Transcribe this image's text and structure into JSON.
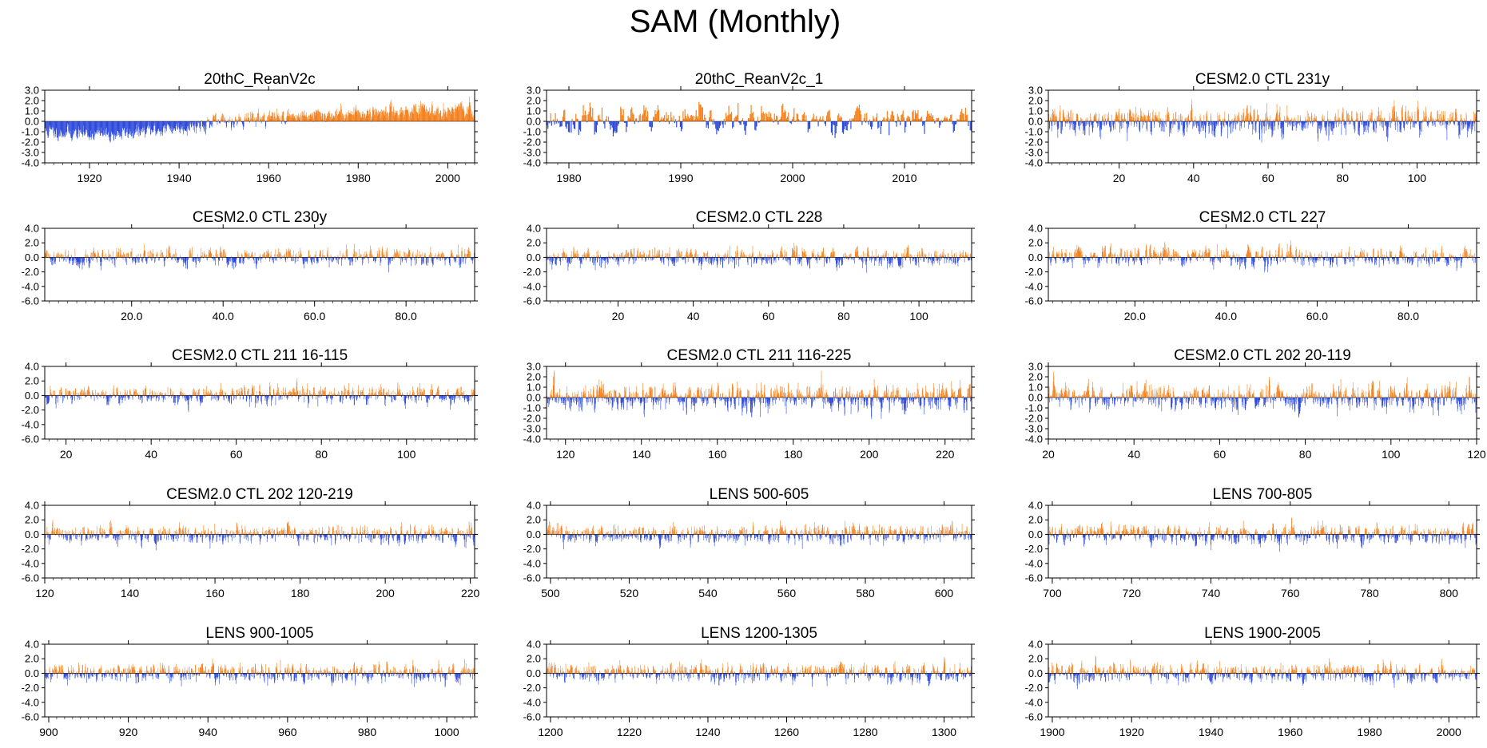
{
  "figure_title": "SAM (Monthly)",
  "colors": {
    "positive": "#f5811f",
    "negative": "#2f4bdc",
    "axis": "#000000"
  },
  "chart_data": [
    {
      "type": "bar",
      "title": "20thC_ReanV2c",
      "xlim": [
        1910,
        2006
      ],
      "ylim": [
        -4,
        3
      ],
      "yticks": [
        3,
        2,
        1,
        0,
        -1,
        -2,
        -3,
        -4
      ],
      "ytick_labels": [
        "3.0",
        "2.0",
        "1.0",
        "0.0",
        "-1.0",
        "-2.0",
        "-3.0",
        "-4.0"
      ],
      "xticks": [
        1920,
        1940,
        1960,
        1980,
        2000
      ],
      "xtick_labels": [
        "1920",
        "1940",
        "1960",
        "1980",
        "2000"
      ],
      "trend": [
        [
          1910,
          -1.0
        ],
        [
          1925,
          -1.3
        ],
        [
          1934,
          -0.9
        ],
        [
          1945,
          -0.3
        ],
        [
          1955,
          0.3
        ],
        [
          1970,
          0.6
        ],
        [
          1980,
          0.8
        ],
        [
          1990,
          1.0
        ],
        [
          2000,
          1.1
        ],
        [
          2006,
          1.0
        ]
      ],
      "noise": 0.5,
      "seed": 11,
      "months": 1152
    },
    {
      "type": "bar",
      "title": "20thC_ReanV2c_1",
      "xlim": [
        1978,
        2016
      ],
      "ylim": [
        -4,
        3
      ],
      "yticks": [
        3,
        2,
        1,
        0,
        -1,
        -2,
        -3,
        -4
      ],
      "ytick_labels": [
        "3.0",
        "2.0",
        "1.0",
        "0.0",
        "-1.0",
        "-2.0",
        "-3.0",
        "-4.0"
      ],
      "xticks": [
        1980,
        1990,
        2000,
        2010
      ],
      "xtick_labels": [
        "1980",
        "1990",
        "2000",
        "2010"
      ],
      "trend": [
        [
          1978,
          0.2
        ],
        [
          1985,
          0.0
        ],
        [
          1995,
          0.1
        ],
        [
          2005,
          0.2
        ],
        [
          2016,
          0.2
        ]
      ],
      "noise": 0.9,
      "seed": 23,
      "months": 456
    },
    {
      "type": "bar",
      "title": "CESM2.0 CTL 231y",
      "xlim": [
        1,
        116
      ],
      "ylim": [
        -4,
        3
      ],
      "yticks": [
        3,
        2,
        1,
        0,
        -1,
        -2,
        -3,
        -4
      ],
      "ytick_labels": [
        "3.0",
        "2.0",
        "1.0",
        "0.0",
        "-1.0",
        "-2.0",
        "-3.0",
        "-4.0"
      ],
      "xticks": [
        20,
        40,
        60,
        80,
        100
      ],
      "xtick_labels": [
        "20",
        "40",
        "60",
        "80",
        "100"
      ],
      "trend": [
        [
          1,
          0.0
        ],
        [
          116,
          0.0
        ]
      ],
      "noise": 0.9,
      "seed": 37,
      "months": 1380
    },
    {
      "type": "bar",
      "title": "CESM2.0 CTL 230y",
      "xlim": [
        1,
        95
      ],
      "ylim": [
        -6,
        4
      ],
      "yticks": [
        4,
        2,
        0,
        -2,
        -4,
        -6
      ],
      "ytick_labels": [
        "4.0",
        "2.0",
        "0.0",
        "-2.0",
        "-4.0",
        "-6.0"
      ],
      "xticks": [
        20,
        40,
        60,
        80
      ],
      "xtick_labels": [
        "20.0",
        "40.0",
        "60.0",
        "80.0"
      ],
      "trend": [
        [
          1,
          0.0
        ],
        [
          95,
          0.0
        ]
      ],
      "noise": 0.9,
      "seed": 41,
      "months": 1128
    },
    {
      "type": "bar",
      "title": "CESM2.0 CTL 228",
      "xlim": [
        1,
        114
      ],
      "ylim": [
        -6,
        4
      ],
      "yticks": [
        4,
        2,
        0,
        -2,
        -4,
        -6
      ],
      "ytick_labels": [
        "4.0",
        "2.0",
        "0.0",
        "-2.0",
        "-4.0",
        "-6.0"
      ],
      "xticks": [
        20,
        40,
        60,
        80,
        100
      ],
      "xtick_labels": [
        "20",
        "40",
        "60",
        "80",
        "100"
      ],
      "trend": [
        [
          1,
          0.0
        ],
        [
          114,
          0.0
        ]
      ],
      "noise": 0.9,
      "seed": 53,
      "months": 1356
    },
    {
      "type": "bar",
      "title": "CESM2.0 CTL 227",
      "xlim": [
        1,
        95
      ],
      "ylim": [
        -6,
        4
      ],
      "yticks": [
        4,
        2,
        0,
        -2,
        -4,
        -6
      ],
      "ytick_labels": [
        "4.0",
        "2.0",
        "0.0",
        "-2.0",
        "-4.0",
        "-6.0"
      ],
      "xticks": [
        20,
        40,
        60,
        80
      ],
      "xtick_labels": [
        "20.0",
        "40.0",
        "60.0",
        "80.0"
      ],
      "trend": [
        [
          1,
          0.0
        ],
        [
          95,
          0.0
        ]
      ],
      "noise": 0.9,
      "seed": 67,
      "months": 1128
    },
    {
      "type": "bar",
      "title": "CESM2.0 CTL 211 16-115",
      "xlim": [
        15,
        116
      ],
      "ylim": [
        -6,
        4
      ],
      "yticks": [
        4,
        2,
        0,
        -2,
        -4,
        -6
      ],
      "ytick_labels": [
        "4.0",
        "2.0",
        "0.0",
        "-2.0",
        "-4.0",
        "-6.0"
      ],
      "xticks": [
        20,
        40,
        60,
        80,
        100
      ],
      "xtick_labels": [
        "20",
        "40",
        "60",
        "80",
        "100"
      ],
      "trend": [
        [
          15,
          0.0
        ],
        [
          116,
          0.0
        ]
      ],
      "noise": 0.9,
      "seed": 71,
      "months": 1200
    },
    {
      "type": "bar",
      "title": "CESM2.0 CTL 211 116-225",
      "xlim": [
        115,
        227
      ],
      "ylim": [
        -4,
        3
      ],
      "yticks": [
        3,
        2,
        1,
        0,
        -1,
        -2,
        -3,
        -4
      ],
      "ytick_labels": [
        "3.0",
        "2.0",
        "1.0",
        "0.0",
        "-1.0",
        "-2.0",
        "-3.0",
        "-4.0"
      ],
      "xticks": [
        120,
        140,
        160,
        180,
        200,
        220
      ],
      "xtick_labels": [
        "120",
        "140",
        "160",
        "180",
        "200",
        "220"
      ],
      "trend": [
        [
          115,
          0.0
        ],
        [
          227,
          0.0
        ]
      ],
      "noise": 0.9,
      "seed": 83,
      "months": 1320
    },
    {
      "type": "bar",
      "title": "CESM2.0 CTL 202 20-119",
      "xlim": [
        20,
        120
      ],
      "ylim": [
        -4,
        3
      ],
      "yticks": [
        3,
        2,
        1,
        0,
        -1,
        -2,
        -3,
        -4
      ],
      "ytick_labels": [
        "3.0",
        "2.0",
        "1.0",
        "0.0",
        "-1.0",
        "-2.0",
        "-3.0",
        "-4.0"
      ],
      "xticks": [
        20,
        40,
        60,
        80,
        100,
        120
      ],
      "xtick_labels": [
        "20",
        "40",
        "60",
        "80",
        "100",
        "120"
      ],
      "trend": [
        [
          20,
          0.0
        ],
        [
          120,
          0.0
        ]
      ],
      "noise": 0.9,
      "seed": 97,
      "months": 1200
    },
    {
      "type": "bar",
      "title": "CESM2.0 CTL 202 120-219",
      "xlim": [
        120,
        221
      ],
      "ylim": [
        -6,
        4
      ],
      "yticks": [
        4,
        2,
        0,
        -2,
        -4,
        -6
      ],
      "ytick_labels": [
        "4.0",
        "2.0",
        "0.0",
        "-2.0",
        "-4.0",
        "-6.0"
      ],
      "xticks": [
        120,
        140,
        160,
        180,
        200,
        220
      ],
      "xtick_labels": [
        "120",
        "140",
        "160",
        "180",
        "200",
        "220"
      ],
      "trend": [
        [
          120,
          0.0
        ],
        [
          221,
          0.0
        ]
      ],
      "noise": 0.9,
      "seed": 101,
      "months": 1200
    },
    {
      "type": "bar",
      "title": "LENS 500-605",
      "xlim": [
        499,
        607
      ],
      "ylim": [
        -6,
        4
      ],
      "yticks": [
        4,
        2,
        0,
        -2,
        -4,
        -6
      ],
      "ytick_labels": [
        "4.0",
        "2.0",
        "0.0",
        "-2.0",
        "-4.0",
        "-6.0"
      ],
      "xticks": [
        500,
        520,
        540,
        560,
        580,
        600
      ],
      "xtick_labels": [
        "500",
        "520",
        "540",
        "560",
        "580",
        "600"
      ],
      "trend": [
        [
          499,
          0.0
        ],
        [
          607,
          0.0
        ]
      ],
      "noise": 0.9,
      "seed": 113,
      "months": 1272
    },
    {
      "type": "bar",
      "title": "LENS 700-805",
      "xlim": [
        699,
        807
      ],
      "ylim": [
        -6,
        4
      ],
      "yticks": [
        4,
        2,
        0,
        -2,
        -4,
        -6
      ],
      "ytick_labels": [
        "4.0",
        "2.0",
        "0.0",
        "-2.0",
        "-4.0",
        "-6.0"
      ],
      "xticks": [
        700,
        720,
        740,
        760,
        780,
        800
      ],
      "xtick_labels": [
        "700",
        "720",
        "740",
        "760",
        "780",
        "800"
      ],
      "trend": [
        [
          699,
          0.0
        ],
        [
          807,
          0.0
        ]
      ],
      "noise": 0.9,
      "seed": 127,
      "months": 1272
    },
    {
      "type": "bar",
      "title": "LENS 900-1005",
      "xlim": [
        899,
        1007
      ],
      "ylim": [
        -6,
        4
      ],
      "yticks": [
        4,
        2,
        0,
        -2,
        -4,
        -6
      ],
      "ytick_labels": [
        "4.0",
        "2.0",
        "0.0",
        "-2.0",
        "-4.0",
        "-6.0"
      ],
      "xticks": [
        900,
        920,
        940,
        960,
        980,
        1000
      ],
      "xtick_labels": [
        "900",
        "920",
        "940",
        "960",
        "980",
        "1000"
      ],
      "trend": [
        [
          899,
          0.0
        ],
        [
          1007,
          0.0
        ]
      ],
      "noise": 0.9,
      "seed": 131,
      "months": 1272
    },
    {
      "type": "bar",
      "title": "LENS 1200-1305",
      "xlim": [
        1199,
        1307
      ],
      "ylim": [
        -6,
        4
      ],
      "yticks": [
        4,
        2,
        0,
        -2,
        -4,
        -6
      ],
      "ytick_labels": [
        "4.0",
        "2.0",
        "0.0",
        "-2.0",
        "-4.0",
        "-6.0"
      ],
      "xticks": [
        1200,
        1220,
        1240,
        1260,
        1280,
        1300
      ],
      "xtick_labels": [
        "1200",
        "1220",
        "1240",
        "1260",
        "1280",
        "1300"
      ],
      "trend": [
        [
          1199,
          0.0
        ],
        [
          1307,
          0.0
        ]
      ],
      "noise": 0.9,
      "seed": 149,
      "months": 1272
    },
    {
      "type": "bar",
      "title": "LENS 1900-2005",
      "xlim": [
        1899,
        2007
      ],
      "ylim": [
        -6,
        4
      ],
      "yticks": [
        4,
        2,
        0,
        -2,
        -4,
        -6
      ],
      "ytick_labels": [
        "4.0",
        "2.0",
        "0.0",
        "-2.0",
        "-4.0",
        "-6.0"
      ],
      "xticks": [
        1900,
        1920,
        1940,
        1960,
        1980,
        2000
      ],
      "xtick_labels": [
        "1900",
        "1920",
        "1940",
        "1960",
        "1980",
        "2000"
      ],
      "trend": [
        [
          1899,
          0.0
        ],
        [
          2007,
          0.0
        ]
      ],
      "noise": 0.9,
      "seed": 157,
      "months": 1272
    }
  ]
}
